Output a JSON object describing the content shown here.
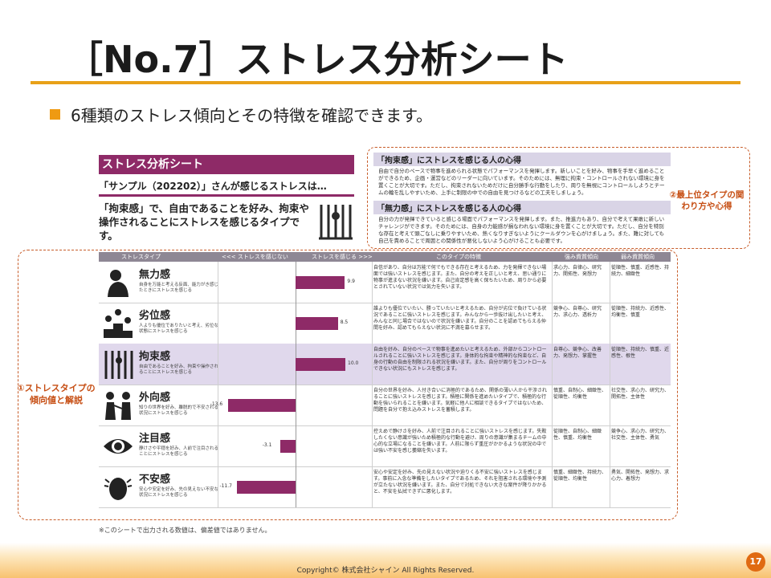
{
  "slide": {
    "title": "［No.7］ストレス分析シート",
    "bullet": "6種類のストレス傾向とその特徴を確認できます。"
  },
  "sheet": {
    "header": "ストレス分析シート",
    "subheading": "「サンプル（202202）」さんが感じるストレスは…",
    "description": "「拘束感」で、自由であることを好み、拘束や操作されることにストレスを感じるタイプです。"
  },
  "callouts": {
    "top_right": "②最上位タイプの関わり方や心得",
    "left": "①ストレスタイプの傾向値と解説"
  },
  "hints": [
    {
      "title": "「拘束感」にストレスを感じる人の心得",
      "body": "自由で自分のペースで物事を進められる状態でパフォーマンスを発揮します。新しいことを好み、物事を手早く進めることができるため、企画・運営などのリーダーに向いています。そのためには、無理に拘束・コントロールされない環境に身を置くことが大切です。ただし、拘束されないためだけに自分勝手な行動をしたり、周りを無視にコントロールしようとチームの輪を乱しやすいため、上手に制限の中での自由を見つけるなどの工夫をしましょう。"
    },
    {
      "title": "「無力感」にストレスを感じる人の心得",
      "body": "自分の力が発揮できていると感じる場面でパフォーマンスを発揮します。また、推進力もあり、自分で考えて果敢に新しいチャレンジができます。そのためには、自身の力能感が損なわれない環境に身を置くことが大切です。ただし、自分を特別な存在と考えて頭ごなしに乗りやすいため、熱くなりすぎないようにクールダウンを心がけましょう。また、難に対しても自己を責めることで周囲との関係性が悪化しないよう心がけることも必要です。"
    }
  ],
  "table": {
    "headers": {
      "type": "ストレスタイプ",
      "left": "<<< ストレスを感じない",
      "right": "ストレスを感じる >>>",
      "feature": "このタイプの特徴",
      "strong": "強み資質傾向",
      "weak": "弱み資質傾向"
    },
    "rows": [
      {
        "name": "無力感",
        "note": "自身を万能と考える反面、能力がき感じたときにストレスを感じる",
        "value_label": "9.9",
        "feature": "自信があり、自分は万能で何でもできる存在と考えるため、力を発揮できない場面では強いストレスを感じます。また、自分の考えを正しいと考え、思い通りに物事が進まない状況を嫌います。自己肯定感を高く保ちたいため、周りから必要とされていない状況では気力を失います。",
        "strong": "求心力、自律心、研究力、開拓性、発想力",
        "weak": "從順性、慎重、近感性、持続力、細緻性"
      },
      {
        "name": "劣位感",
        "note": "人よりも優位でありたいと考え、劣位な状態にストレスを感じる",
        "value_label": "8.5",
        "feature": "誰よりも優位でいたい、勝っていたいと考えるため、自分が劣位で負けている状況であることに強いストレスを感じます。みんなから一歩抜け出したいと考え、みんなと同じ場合ではないので状況を嫌います。自分のことを認めてもらえる仲間を好み、認めてもらえない状況に不満を募らせます。",
        "strong": "競争心、自尊心、研究力、求心力、透析力",
        "weak": "從順性、持続力、近感性、均衡性、慎重"
      },
      {
        "name": "拘束感",
        "note": "自由であることを好み、拘束や操作されることにストレスを感じる",
        "value_label": "10.0",
        "feature": "自由を好み、自分のペースで物事を進めたいと考えるため、外部からコントロールされることに強いストレスを感じます。身体的な拘束や精神的な拘束など、自身の行動の自由を制限される状況を嫌います。また、自分が周りをコントロールできない状況にもストレスを感じます。",
        "strong": "自尊心、競争心、改善力、発想力、掌握性",
        "weak": "從順性、持続力、慎重、近感性、根性"
      },
      {
        "name": "外向感",
        "note": "知りの世界を好み、離脱的で不安される状況にストレスを感じる",
        "value_label": "-13.6",
        "feature": "自分の世界を好み、人付き合いに消極的であるため、関係の薄い人から干渉されることに強いストレスを感じます。積極に関係を進めたいタイプで、積極的な行動を強いられることを嫌います。気軽に他人に相談できるタイプではないため、問題を自分で抱え込みストレスを蓄積します。",
        "strong": "慎重、自制心、細緻性、從順性、均衡性",
        "weak": "社交性、求心力、研究力、開拓性、主体性"
      },
      {
        "name": "注目感",
        "note": "静けさや平穏を好み、人前で注目されることにストレスを感じる",
        "value_label": "-3.1",
        "feature": "控えめで静けさを好み、人前で注目されることに強いストレスを感じます。失敗したくない意識が強いため積極的な行動を避け、周りの意識が集まるチームの中心的な立場になることを嫌います。人前に限らず重圧がかかるような状況の中では強い不安を感じ萎縮を失います。",
        "strong": "從順性、自制心、細緻性、慎重、均衡性",
        "weak": "競争心、求心力、研究力、社交性、主体性、勇気"
      },
      {
        "name": "不安感",
        "note": "安心や安定を好み、先の見えない不安な状況にストレスを感じる",
        "value_label": "-11.7",
        "feature": "安心や安定を好み、先の見えない状況や迫りくる不安に強いストレスを感じます。事前に入念な準備をしたいタイプであるため、それを阻害される環境や予測が立たない状況を嫌います。また、自分で対処できない大きな案件が降りかかると、不安を払拭できずに悪化します。",
        "strong": "慎重、細緻性、持続力、從順性、均衡性",
        "weak": "勇気、開拓性、発想力、求心力、着想力"
      }
    ]
  },
  "chart_data": {
    "type": "bar",
    "categories": [
      "無力感",
      "劣位感",
      "拘束感",
      "外向感",
      "注目感",
      "不安感"
    ],
    "values": [
      9.9,
      8.5,
      10.0,
      -13.6,
      -3.1,
      -11.7
    ],
    "xlabel": "",
    "ylabel": "",
    "xlim": [
      -15,
      15
    ]
  },
  "footer": {
    "footnote": "※このシートで出力される数値は、偏差値ではありません。",
    "copyright": "Copyright© 株式会社シャイン All Rights Reserved.",
    "page": "17"
  },
  "colors": {
    "accent": "#e8a118",
    "bar": "#8e2a67",
    "callout": "#c75d2a"
  }
}
